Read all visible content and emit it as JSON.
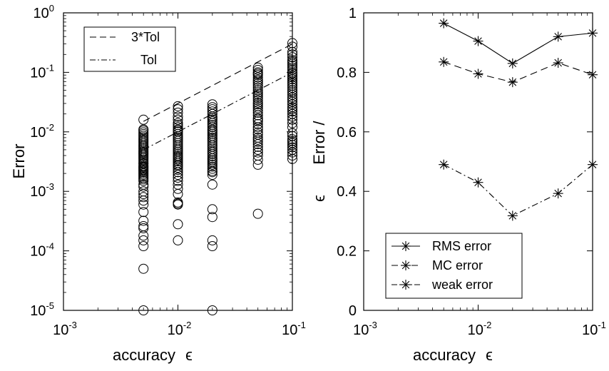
{
  "chart_data": [
    {
      "type": "scatter",
      "xscale": "log",
      "yscale": "log",
      "xlim": [
        0.001,
        0.1
      ],
      "ylim": [
        1e-05,
        1
      ],
      "xlabel": "accuracy",
      "xlabel_symbol": "ϵ",
      "ylabel": "Error",
      "xticks": [
        {
          "base": "10",
          "exp": "-3",
          "value": 0.001
        },
        {
          "base": "10",
          "exp": "-2",
          "value": 0.01
        },
        {
          "base": "10",
          "exp": "-1",
          "value": 0.1
        }
      ],
      "yticks": [
        {
          "base": "10",
          "exp": "0",
          "value": 1
        },
        {
          "base": "10",
          "exp": "-1",
          "value": 0.1
        },
        {
          "base": "10",
          "exp": "-2",
          "value": 0.01
        },
        {
          "base": "10",
          "exp": "-3",
          "value": 0.001
        },
        {
          "base": "10",
          "exp": "-4",
          "value": 0.0001
        },
        {
          "base": "10",
          "exp": "-5",
          "value": 1e-05
        }
      ],
      "legend_position": "top-left",
      "lines": [
        {
          "name": "3*Tol",
          "style": "dashed",
          "x": [
            0.005,
            0.1
          ],
          "y": [
            0.015,
            0.3
          ]
        },
        {
          "name": "Tol",
          "style": "dashdot",
          "x": [
            0.005,
            0.1
          ],
          "y": [
            0.005,
            0.1
          ]
        }
      ],
      "points": [
        {
          "x": 0.005,
          "y": [
            0.016,
            0.011,
            0.0105,
            0.0098,
            0.0092,
            0.0086,
            0.0081,
            0.0076,
            0.0072,
            0.0068,
            0.0064,
            0.006,
            0.0057,
            0.0054,
            0.0051,
            0.0048,
            0.0046,
            0.0044,
            0.0042,
            0.004,
            0.0038,
            0.0036,
            0.0034,
            0.0032,
            0.003,
            0.0029,
            0.0027,
            0.0026,
            0.0025,
            0.0024,
            0.0023,
            0.0022,
            0.0021,
            0.002,
            0.0019,
            0.0018,
            0.0017,
            0.0016,
            0.0015,
            0.0013,
            0.0012,
            0.001,
            0.0009,
            0.0008,
            0.0007,
            0.0006,
            0.00045,
            0.00032,
            0.00026,
            0.00024,
            0.00018,
            0.00015,
            0.00012,
            5e-05,
            1e-05
          ]
        },
        {
          "x": 0.01,
          "y": [
            0.027,
            0.024,
            0.021,
            0.018,
            0.016,
            0.014,
            0.013,
            0.012,
            0.011,
            0.0105,
            0.01,
            0.0092,
            0.0085,
            0.008,
            0.0075,
            0.007,
            0.0065,
            0.006,
            0.0056,
            0.0052,
            0.0049,
            0.0046,
            0.0043,
            0.004,
            0.0038,
            0.0036,
            0.0034,
            0.0032,
            0.003,
            0.0028,
            0.0027,
            0.0025,
            0.0023,
            0.0021,
            0.0019,
            0.0017,
            0.0015,
            0.0013,
            0.0011,
            0.0009,
            0.00065,
            0.00062,
            0.0006,
            0.00028,
            0.00015
          ]
        },
        {
          "x": 0.02,
          "y": [
            0.029,
            0.026,
            0.024,
            0.022,
            0.02,
            0.018,
            0.017,
            0.016,
            0.015,
            0.014,
            0.013,
            0.012,
            0.011,
            0.0104,
            0.0098,
            0.0092,
            0.0086,
            0.008,
            0.0075,
            0.007,
            0.0065,
            0.006,
            0.0056,
            0.0052,
            0.0048,
            0.0045,
            0.0042,
            0.0039,
            0.0036,
            0.0034,
            0.0032,
            0.003,
            0.0028,
            0.0026,
            0.0024,
            0.0022,
            0.0021,
            0.0019,
            0.0013,
            0.0005,
            0.00037,
            0.00015,
            0.00012,
            1e-05
          ]
        },
        {
          "x": 0.05,
          "y": [
            0.12,
            0.11,
            0.1,
            0.095,
            0.09,
            0.082,
            0.075,
            0.07,
            0.065,
            0.06,
            0.055,
            0.05,
            0.046,
            0.043,
            0.04,
            0.037,
            0.034,
            0.031,
            0.029,
            0.027,
            0.025,
            0.023,
            0.021,
            0.019,
            0.017,
            0.016,
            0.015,
            0.0135,
            0.012,
            0.011,
            0.0098,
            0.009,
            0.008,
            0.0074,
            0.0068,
            0.0062,
            0.0056,
            0.005,
            0.0045,
            0.004,
            0.0034,
            0.0028,
            0.00042
          ]
        },
        {
          "x": 0.1,
          "y": [
            0.31,
            0.27,
            0.22,
            0.2,
            0.18,
            0.16,
            0.15,
            0.14,
            0.13,
            0.12,
            0.11,
            0.1,
            0.095,
            0.088,
            0.082,
            0.076,
            0.07,
            0.065,
            0.06,
            0.055,
            0.05,
            0.046,
            0.042,
            0.038,
            0.035,
            0.032,
            0.029,
            0.026,
            0.024,
            0.022,
            0.02,
            0.018,
            0.016,
            0.014,
            0.012,
            0.0095,
            0.0085,
            0.0075,
            0.007,
            0.0065,
            0.006,
            0.0055,
            0.005,
            0.0045,
            0.004,
            0.0035
          ]
        }
      ]
    },
    {
      "type": "line",
      "xscale": "log",
      "xlim": [
        0.001,
        0.1
      ],
      "ylim": [
        0,
        1
      ],
      "xlabel": "accuracy",
      "xlabel_symbol": "ϵ",
      "ylabel": "Error /",
      "ylabel_symbol": "ϵ",
      "xticks": [
        {
          "base": "10",
          "exp": "-3",
          "value": 0.001
        },
        {
          "base": "10",
          "exp": "-2",
          "value": 0.01
        },
        {
          "base": "10",
          "exp": "-1",
          "value": 0.1
        }
      ],
      "yticks": [
        "0",
        "0.2",
        "0.4",
        "0.6",
        "0.8",
        "1"
      ],
      "legend_position": "bottom-left",
      "x": [
        0.005,
        0.01,
        0.02,
        0.05,
        0.1
      ],
      "series": [
        {
          "name": "RMS error",
          "style": "solid",
          "marker": "asterisk",
          "values": [
            0.965,
            0.905,
            0.83,
            0.92,
            0.932
          ]
        },
        {
          "name": "MC error",
          "style": "dashed",
          "marker": "asterisk",
          "values": [
            0.835,
            0.795,
            0.767,
            0.832,
            0.792
          ]
        },
        {
          "name": "weak error",
          "style": "dashdot",
          "marker": "asterisk",
          "values": [
            0.49,
            0.43,
            0.318,
            0.393,
            0.49
          ]
        }
      ]
    }
  ]
}
